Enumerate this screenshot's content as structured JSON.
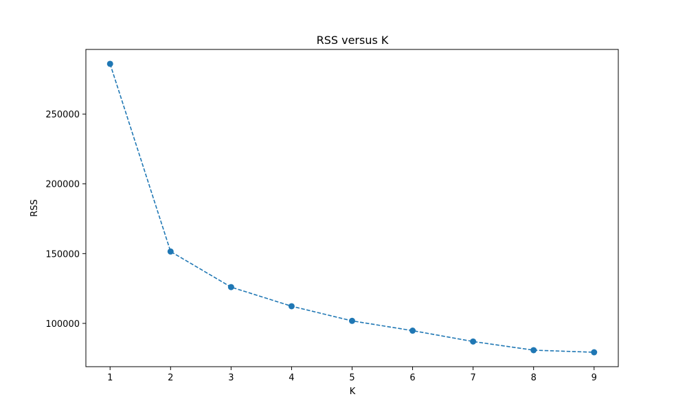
{
  "chart_data": {
    "type": "line",
    "title": "RSS versus K",
    "xlabel": "K",
    "ylabel": "RSS",
    "x": [
      1,
      2,
      3,
      4,
      5,
      6,
      7,
      8,
      9
    ],
    "series": [
      {
        "values": [
          286000,
          151500,
          126000,
          112300,
          101800,
          94800,
          87000,
          80800,
          79300
        ],
        "color": "#1f77b4",
        "line_style": "dashed",
        "marker": "circle"
      }
    ],
    "xticks": [
      1,
      2,
      3,
      4,
      5,
      6,
      7,
      8,
      9
    ],
    "yticks": [
      100000,
      150000,
      200000,
      250000
    ],
    "xlim": [
      0.6,
      9.4
    ],
    "ylim": [
      68970,
      296330
    ],
    "grid": false,
    "legend": "none"
  }
}
